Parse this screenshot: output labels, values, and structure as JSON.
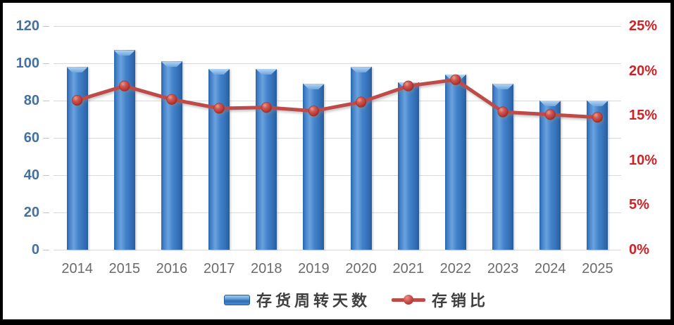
{
  "chart_data": {
    "type": "combo",
    "categories": [
      "2014",
      "2015",
      "2016",
      "2017",
      "2018",
      "2019",
      "2020",
      "2021",
      "2022",
      "2023",
      "2024",
      "2025"
    ],
    "series": [
      {
        "name": "存货周转天数",
        "type": "bar",
        "axis": "left",
        "values": [
          98,
          107,
          101,
          97,
          97,
          89,
          98,
          90,
          94,
          89,
          80,
          80
        ]
      },
      {
        "name": "存销比",
        "type": "line",
        "axis": "right",
        "unit": "%",
        "values": [
          16.7,
          18.3,
          16.8,
          15.8,
          15.9,
          15.5,
          16.5,
          18.3,
          19.0,
          15.4,
          15.1,
          14.8
        ]
      }
    ],
    "left_axis": {
      "min": 0,
      "max": 120,
      "step": 20,
      "ticks": [
        0,
        20,
        40,
        60,
        80,
        100,
        120
      ]
    },
    "right_axis": {
      "min": 0,
      "max": 25,
      "step": 5,
      "tick_labels": [
        "0%",
        "5%",
        "10%",
        "15%",
        "20%",
        "25%"
      ]
    },
    "grid": true,
    "legend_position": "bottom"
  },
  "colors": {
    "bar_fill": "#3E7DC6",
    "bar_edge": "#2B5F9E",
    "line": "#BE4B48",
    "marker": "#C2423E",
    "left_axis_labels": "#44719F",
    "right_axis_labels": "#CE2227",
    "x_axis_labels": "#6B6B6B",
    "gridline": "#D9D9D9",
    "background": "#FFFFFF",
    "border": "#000000"
  }
}
